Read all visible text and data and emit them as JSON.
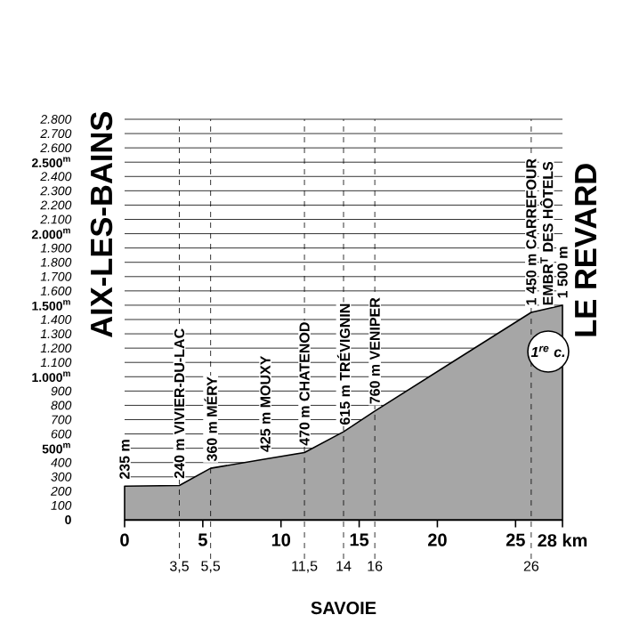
{
  "chart_data": {
    "type": "area",
    "xlabel": "SAVOIE",
    "x": [
      0,
      3.5,
      5.5,
      9,
      11.5,
      14,
      16,
      26,
      28
    ],
    "series": [
      {
        "color": "#a6a6a6",
        "values": [
          235,
          240,
          360,
          425,
          470,
          615,
          760,
          1450,
          1500
        ]
      }
    ],
    "xlim": [
      0,
      28
    ],
    "ylim": [
      0,
      2800
    ],
    "xticks": [
      0,
      5,
      10,
      15,
      20,
      25,
      {
        "value": 28,
        "label": "28 km"
      }
    ],
    "yticks": [
      0,
      100,
      200,
      300,
      400,
      {
        "value": 500,
        "label": "500$^{m}$"
      },
      600,
      700,
      800,
      900,
      {
        "value": 1000,
        "label": "1.000$^{m}$"
      },
      {
        "value": 1100,
        "label": "1.100"
      },
      {
        "value": 1200,
        "label": "1.200"
      },
      {
        "value": 1300,
        "label": "1.300"
      },
      {
        "value": 1400,
        "label": "1.400"
      },
      {
        "value": 1500,
        "label": "1.500$^{m}$"
      },
      {
        "value": 1600,
        "label": "1.600"
      },
      {
        "value": 1700,
        "label": "1.700"
      },
      {
        "value": 1800,
        "label": "1.800"
      },
      {
        "value": 1900,
        "label": "1.900"
      },
      {
        "value": 2000,
        "label": "2.000$^{m}$"
      },
      {
        "value": 2100,
        "label": "2.100"
      },
      {
        "value": 2200,
        "label": "2.200"
      },
      {
        "value": 2300,
        "label": "2.300"
      },
      {
        "value": 2400,
        "label": "2.400"
      },
      {
        "value": 2500,
        "label": "2.500$^{m}$"
      },
      {
        "value": 2600,
        "label": "2.600"
      },
      {
        "value": 2700,
        "label": "2.700"
      },
      {
        "value": 2800,
        "label": "2.800"
      }
    ],
    "grid": "y",
    "ref_lines": [
      {
        "axis": "x",
        "value": 3.5,
        "label": "3,5",
        "line_style": "dashed"
      },
      {
        "axis": "x",
        "value": 5.5,
        "label": "5,5",
        "line_style": "dashed"
      },
      {
        "axis": "x",
        "value": 11.5,
        "label": "11,5",
        "line_style": "dashed"
      },
      {
        "axis": "x",
        "value": 14,
        "label": "14",
        "line_style": "dashed"
      },
      {
        "axis": "x",
        "value": 16,
        "label": "16",
        "line_style": "dashed"
      },
      {
        "axis": "x",
        "value": 26,
        "label": "26",
        "line_style": "dashed"
      }
    ],
    "annotations": [
      "AIX-LES-BAINS",
      {
        "text": "235 m",
        "x": 0,
        "y": 235
      },
      {
        "text": "240 m VIVIER-DU-LAC",
        "x": 3.5,
        "y": 240
      },
      {
        "text": "360 m MÉRY",
        "x": 5.5,
        "y": 360
      },
      {
        "text": "425 m MOUXY",
        "x": 9,
        "y": 425
      },
      {
        "text": "470 m CHATENOD",
        "x": 11.5,
        "y": 470
      },
      {
        "text": "615 m TRÉVIGNIN",
        "x": 14,
        "y": 615
      },
      {
        "text": "760 m VENIPER",
        "x": 16,
        "y": 760
      },
      {
        "text": "1 450 m CARREFOUR",
        "x": 26,
        "y": 1450
      },
      {
        "text": "EMBR$^{T}$ DES HÔTELS",
        "x": 26,
        "y": 1450
      },
      {
        "text": "1 500 m",
        "x": 28,
        "y": 1500
      },
      "LE REVARD",
      "1$^{re}$ c."
    ]
  }
}
